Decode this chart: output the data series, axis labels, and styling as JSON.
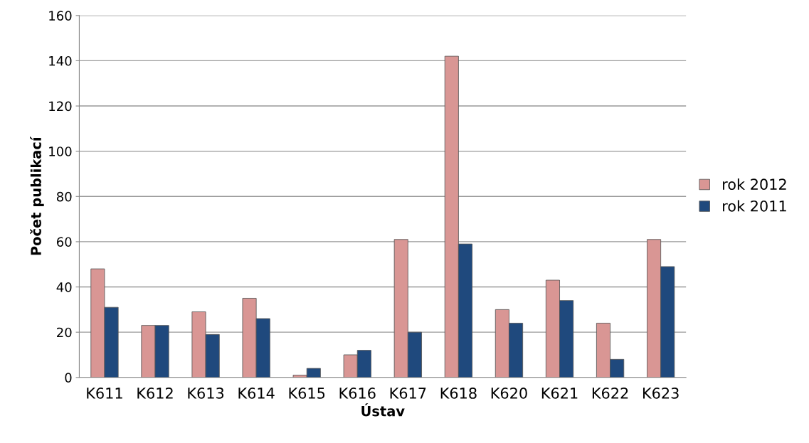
{
  "chart_data": {
    "type": "bar",
    "xlabel": "Ústav",
    "ylabel": "Počet publikací",
    "categories": [
      "K611",
      "K612",
      "K613",
      "K614",
      "K615",
      "K616",
      "K617",
      "K618",
      "K620",
      "K621",
      "K622",
      "K623"
    ],
    "series": [
      {
        "name": "rok 2012",
        "color": "#d99694",
        "values": [
          48,
          23,
          29,
          35,
          1,
          10,
          61,
          142,
          30,
          43,
          24,
          61
        ]
      },
      {
        "name": "rok 2011",
        "color": "#1f497d",
        "values": [
          31,
          23,
          19,
          26,
          4,
          12,
          20,
          59,
          24,
          34,
          8,
          49
        ]
      }
    ],
    "ylim": [
      0,
      160
    ],
    "yticks": [
      0,
      20,
      40,
      60,
      80,
      100,
      120,
      140,
      160
    ],
    "grid": "y",
    "legend": "right"
  }
}
